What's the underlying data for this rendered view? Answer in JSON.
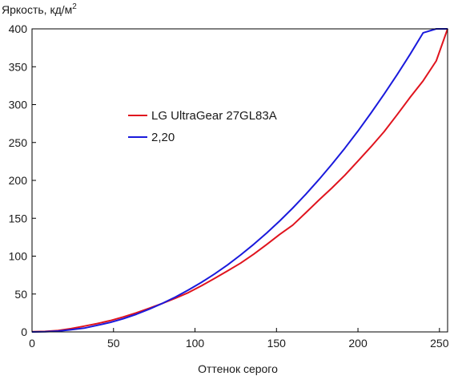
{
  "chart_data": {
    "type": "line",
    "title": "",
    "ylabel": "Яркость, кд/м",
    "ylabel_sup": "2",
    "xlabel": "Оттенок серого",
    "xlim": [
      0,
      255
    ],
    "ylim": [
      0,
      400
    ],
    "x_ticks": [
      0,
      50,
      100,
      150,
      200,
      250
    ],
    "y_ticks": [
      0,
      50,
      100,
      150,
      200,
      250,
      300,
      350,
      400
    ],
    "grid": false,
    "legend_position": "upper-left-center",
    "series": [
      {
        "name": "LG UltraGear 27GL83A",
        "color": "#e0141e",
        "x": [
          0,
          8,
          16,
          24,
          32,
          40,
          48,
          56,
          64,
          72,
          80,
          88,
          96,
          104,
          112,
          120,
          128,
          136,
          144,
          152,
          160,
          168,
          176,
          184,
          192,
          200,
          208,
          216,
          224,
          232,
          240,
          248,
          255
        ],
        "y": [
          0.2,
          0.6,
          1.9,
          4.3,
          7.6,
          11.0,
          14.9,
          19.8,
          25.2,
          31.3,
          37.7,
          44.6,
          52.0,
          61.0,
          70.6,
          80.5,
          90.8,
          102.5,
          115.4,
          128.8,
          141.0,
          157.3,
          174.0,
          190.0,
          207.0,
          225.6,
          244.3,
          264.1,
          286.6,
          309.6,
          331.5,
          357.7,
          400.0
        ]
      },
      {
        "name": "2,20",
        "color": "#1a1adc",
        "x": [
          0,
          8,
          16,
          24,
          32,
          40,
          48,
          56,
          64,
          72,
          80,
          88,
          96,
          104,
          112,
          120,
          128,
          136,
          144,
          152,
          160,
          168,
          176,
          184,
          192,
          200,
          208,
          216,
          224,
          232,
          240,
          248,
          255
        ],
        "y": [
          0.0,
          0.2,
          1.1,
          2.9,
          5.0,
          8.7,
          12.5,
          17.5,
          23.3,
          30.0,
          37.7,
          46.0,
          55.4,
          65.5,
          76.5,
          88.5,
          101.6,
          115.6,
          130.6,
          146.6,
          163.5,
          181.7,
          200.9,
          221.3,
          242.6,
          265.2,
          288.9,
          313.6,
          339.5,
          366.5,
          394.8,
          424.1,
          400.0
        ]
      }
    ]
  }
}
